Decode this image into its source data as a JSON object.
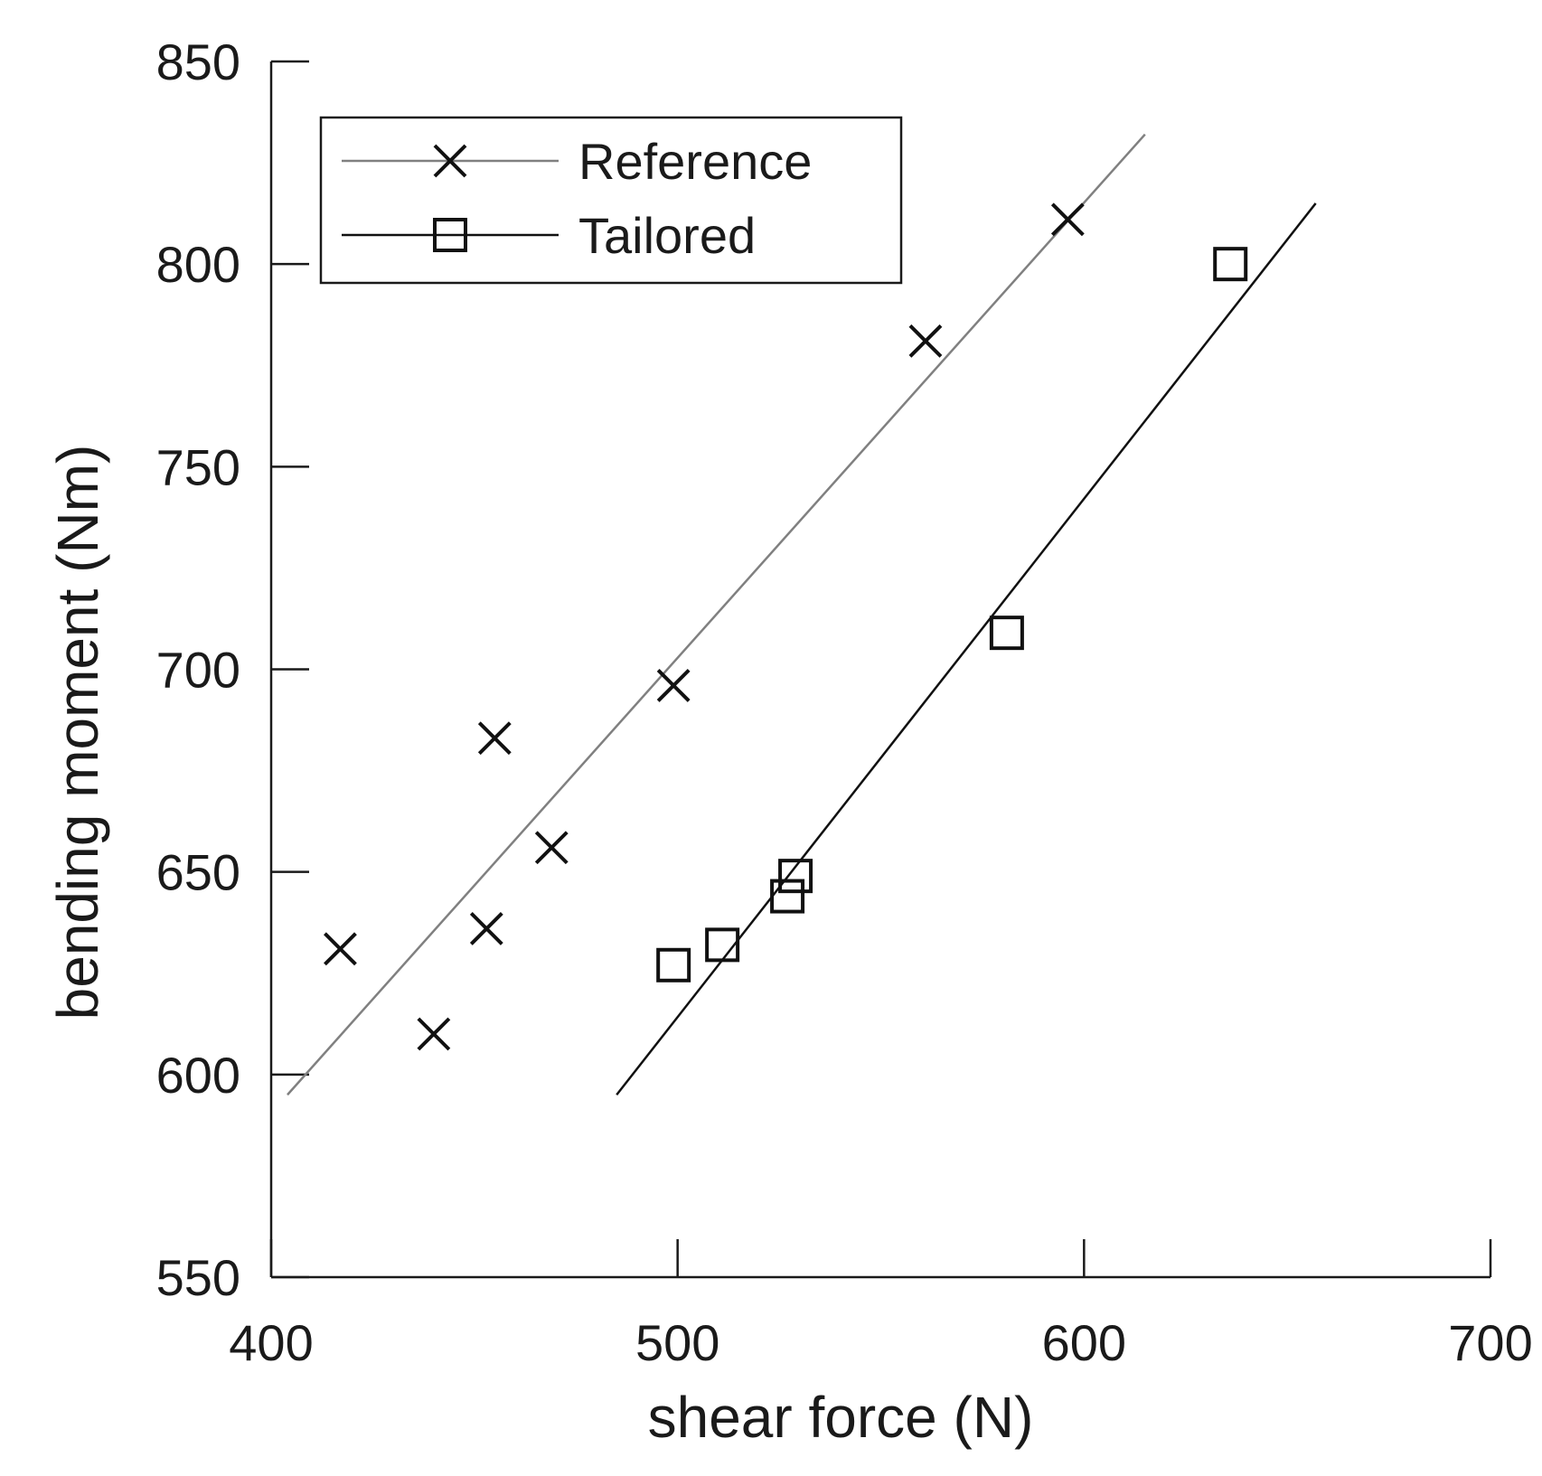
{
  "chart_data": {
    "type": "scatter",
    "xlabel": "shear force (N)",
    "ylabel": "bending moment (Nm)",
    "xlim": [
      400,
      700
    ],
    "ylim": [
      550,
      850
    ],
    "xticks": [
      400,
      500,
      600,
      700
    ],
    "yticks": [
      550,
      600,
      650,
      700,
      750,
      800,
      850
    ],
    "xtick_labels": [
      "400",
      "500",
      "600",
      "700"
    ],
    "ytick_labels": [
      "550",
      "600",
      "650",
      "700",
      "750",
      "800",
      "850"
    ],
    "legend_position": "top-left",
    "grid": false,
    "series": [
      {
        "name": "Reference",
        "marker": "x",
        "color": "#111111",
        "line_color": "#808080",
        "points": [
          {
            "x": 417,
            "y": 631
          },
          {
            "x": 440,
            "y": 610
          },
          {
            "x": 453,
            "y": 636
          },
          {
            "x": 455,
            "y": 683
          },
          {
            "x": 469,
            "y": 656
          },
          {
            "x": 499,
            "y": 696
          },
          {
            "x": 561,
            "y": 781
          },
          {
            "x": 596,
            "y": 811
          }
        ],
        "fit_line": [
          {
            "x": 404,
            "y": 595
          },
          {
            "x": 615,
            "y": 832
          }
        ]
      },
      {
        "name": "Tailored",
        "marker": "square",
        "color": "#111111",
        "line_color": "#111111",
        "points": [
          {
            "x": 499,
            "y": 627
          },
          {
            "x": 511,
            "y": 632
          },
          {
            "x": 527,
            "y": 644
          },
          {
            "x": 529,
            "y": 649
          },
          {
            "x": 581,
            "y": 709
          },
          {
            "x": 636,
            "y": 800
          }
        ],
        "fit_line": [
          {
            "x": 485,
            "y": 595
          },
          {
            "x": 657,
            "y": 815
          }
        ]
      }
    ]
  }
}
